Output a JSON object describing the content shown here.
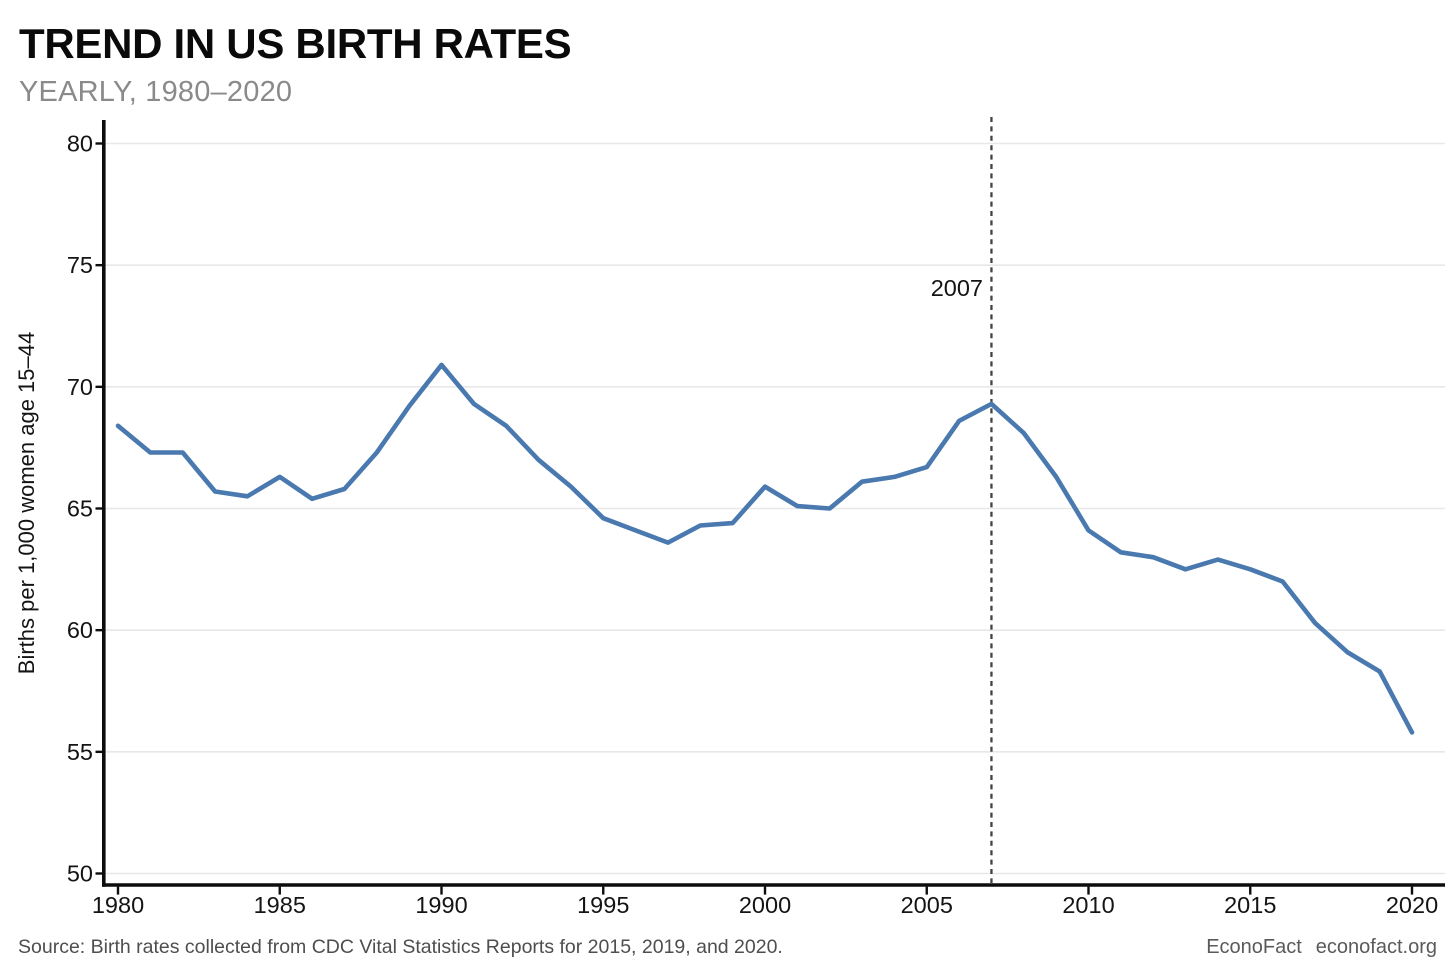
{
  "header": {
    "title": "TREND IN US BIRTH RATES",
    "subtitle": "YEARLY, 1980–2020"
  },
  "footer": {
    "source": "Source: Birth rates collected from CDC Vital Statistics Reports for 2015, 2019, and 2020.",
    "brand": "EconoFact",
    "site": "econofact.org"
  },
  "chart_data": {
    "type": "line",
    "title": "TREND IN US BIRTH RATES",
    "subtitle": "YEARLY, 1980–2020",
    "xlabel": "",
    "ylabel": "Births per 1,000 women age 15–44",
    "xlim": [
      1980,
      2020
    ],
    "ylim": [
      50,
      80
    ],
    "xticks": [
      1980,
      1985,
      1990,
      1995,
      2000,
      2005,
      2010,
      2015,
      2020
    ],
    "yticks": [
      50,
      55,
      60,
      65,
      70,
      75,
      80
    ],
    "grid": "horizontal-only",
    "legend": "none",
    "annotation": {
      "x": 2007,
      "label": "2007",
      "style": "dashed-vertical-line",
      "color": "#424242"
    },
    "series": [
      {
        "name": "Births per 1,000 women age 15-44",
        "color": "#4a79b0",
        "x": [
          1980,
          1981,
          1982,
          1983,
          1984,
          1985,
          1986,
          1987,
          1988,
          1989,
          1990,
          1991,
          1992,
          1993,
          1994,
          1995,
          1996,
          1997,
          1998,
          1999,
          2000,
          2001,
          2002,
          2003,
          2004,
          2005,
          2006,
          2007,
          2008,
          2009,
          2010,
          2011,
          2012,
          2013,
          2014,
          2015,
          2016,
          2017,
          2018,
          2019,
          2020
        ],
        "values": [
          68.4,
          67.3,
          67.3,
          65.7,
          65.5,
          66.3,
          65.4,
          65.8,
          67.3,
          69.2,
          70.9,
          69.3,
          68.4,
          67.0,
          65.9,
          64.6,
          64.1,
          63.6,
          64.3,
          64.4,
          65.9,
          65.1,
          65.0,
          66.1,
          66.3,
          66.7,
          68.6,
          69.3,
          68.1,
          66.3,
          64.1,
          63.2,
          63.0,
          62.5,
          62.9,
          62.5,
          62.0,
          60.3,
          59.1,
          58.3,
          55.8
        ]
      }
    ],
    "colors": {
      "line": "#4a79b0",
      "axis": "#0d0d0d",
      "gridline": "#e8e8e8",
      "annotation_line": "#424242",
      "tick_label": "#141414"
    }
  }
}
